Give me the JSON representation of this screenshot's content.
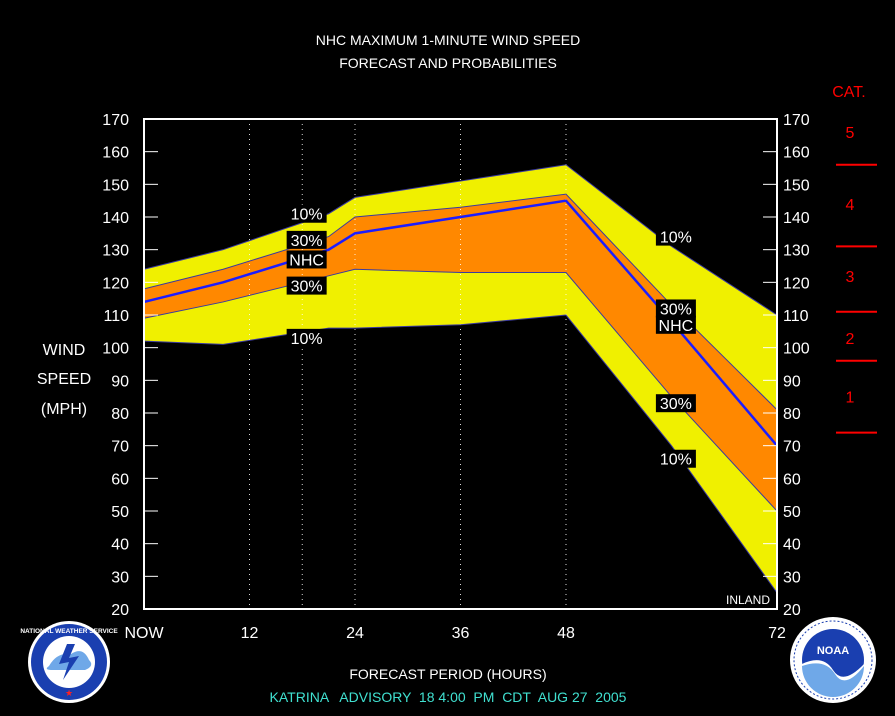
{
  "chart_data": {
    "type": "area",
    "title": "NHC MAXIMUM 1-MINUTE WIND SPEED",
    "subtitle": "FORECAST AND PROBABILITIES",
    "xlabel": "FORECAST PERIOD (HOURS)",
    "ylabel_lines": [
      "WIND",
      "SPEED",
      "(MPH)"
    ],
    "footer": "KATRINA   ADVISORY  18 4:00  PM  CDT  AUG 27  2005",
    "x_ticks": [
      {
        "x": 0,
        "label": "NOW"
      },
      {
        "x": 12,
        "label": "12"
      },
      {
        "x": 24,
        "label": "24"
      },
      {
        "x": 36,
        "label": "36"
      },
      {
        "x": 48,
        "label": "48"
      },
      {
        "x": 72,
        "label": "72"
      }
    ],
    "xlim": [
      0,
      72
    ],
    "ylim": [
      20,
      170
    ],
    "y_ticks": [
      20,
      30,
      40,
      50,
      60,
      70,
      80,
      90,
      100,
      110,
      120,
      130,
      140,
      150,
      160,
      170
    ],
    "vertical_grid_x": [
      12,
      18,
      24,
      36,
      48
    ],
    "grid_style": "dotted vertical",
    "inland_label": "INLAND",
    "x": [
      0,
      9,
      21,
      24,
      36,
      48,
      60,
      72
    ],
    "series": [
      {
        "name": "10%",
        "role": "outer-upper",
        "values": [
          124,
          130,
          141,
          146,
          151,
          156,
          131,
          110
        ]
      },
      {
        "name": "30%",
        "role": "inner-upper",
        "values": [
          118,
          124,
          134,
          140,
          143,
          147,
          113,
          81
        ]
      },
      {
        "name": "NHC",
        "role": "forecast",
        "values": [
          114,
          120,
          130,
          135,
          140,
          145,
          108,
          70
        ]
      },
      {
        "name": "30%",
        "role": "inner-lower",
        "values": [
          109,
          114,
          122,
          124,
          123,
          123,
          85,
          50
        ]
      },
      {
        "name": "10%",
        "role": "outer-lower",
        "values": [
          102,
          101,
          106,
          106,
          107,
          110,
          70,
          25
        ]
      }
    ],
    "band_labels": [
      {
        "text": "10%",
        "x": 18.5,
        "y": 141
      },
      {
        "text": "30%",
        "x": 18.5,
        "y": 133
      },
      {
        "text": "NHC",
        "x": 18.5,
        "y": 127
      },
      {
        "text": "30%",
        "x": 18.5,
        "y": 119
      },
      {
        "text": "10%",
        "x": 18.5,
        "y": 103
      },
      {
        "text": "10%",
        "x": 60.5,
        "y": 134
      },
      {
        "text": "30%",
        "x": 60.5,
        "y": 112
      },
      {
        "text": "NHC",
        "x": 60.5,
        "y": 107
      },
      {
        "text": "30%",
        "x": 60.5,
        "y": 83
      },
      {
        "text": "10%",
        "x": 60.5,
        "y": 66
      }
    ],
    "category_title": "CAT.",
    "categories": [
      {
        "label": "5",
        "mid": 166
      },
      {
        "label": "4",
        "mid": 144
      },
      {
        "label": "3",
        "mid": 122
      },
      {
        "label": "2",
        "mid": 103
      },
      {
        "label": "1",
        "mid": 85
      }
    ],
    "category_boundaries": [
      156,
      131,
      111,
      96,
      74
    ],
    "logos": [
      {
        "name": "nws-logo",
        "text": "NATIONAL WEATHER SERVICE"
      },
      {
        "name": "noaa-logo",
        "text": "NOAA"
      }
    ],
    "colors": {
      "background": "#000000",
      "outer_band": "#f0f000",
      "inner_band": "#ff8800",
      "forecast_line": "#1c1cff",
      "frame": "#ffffff",
      "category": "#ff0000",
      "footer": "#40e0d0",
      "text": "#ffffff"
    }
  }
}
